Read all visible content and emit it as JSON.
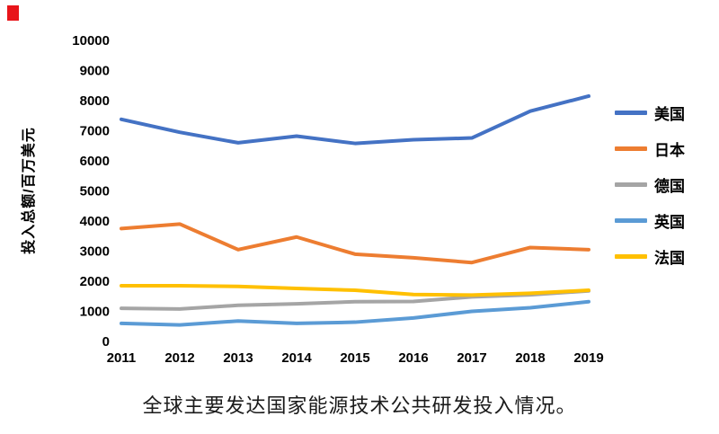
{
  "decorations": {
    "corner_mark_color": "#e8151a"
  },
  "chart_data": {
    "type": "line",
    "title": "全球主要发达国家能源技术公共研发投入情况。",
    "xlabel": "",
    "ylabel": "投入总额/百万美元",
    "ylim": [
      0,
      10000
    ],
    "y_tick_interval": 1000,
    "grid": false,
    "legend_position": "right",
    "categories": [
      "2011",
      "2012",
      "2013",
      "2014",
      "2015",
      "2016",
      "2017",
      "2018",
      "2019"
    ],
    "series": [
      {
        "name": "美国",
        "color": "#4472C4",
        "values": [
          7380,
          6950,
          6600,
          6820,
          6580,
          6700,
          6760,
          7650,
          8150
        ]
      },
      {
        "name": "日本",
        "color": "#ED7D31",
        "values": [
          3750,
          3900,
          3050,
          3470,
          2900,
          2780,
          2620,
          3120,
          3050
        ]
      },
      {
        "name": "德国",
        "color": "#A5A5A5",
        "values": [
          1100,
          1080,
          1200,
          1250,
          1320,
          1330,
          1480,
          1550,
          1680
        ]
      },
      {
        "name": "英国",
        "color": "#5B9BD5",
        "values": [
          600,
          550,
          680,
          600,
          640,
          780,
          1000,
          1120,
          1320
        ]
      },
      {
        "name": "法国",
        "color": "#FFC000",
        "values": [
          1850,
          1850,
          1830,
          1760,
          1700,
          1560,
          1540,
          1600,
          1700
        ]
      }
    ]
  }
}
